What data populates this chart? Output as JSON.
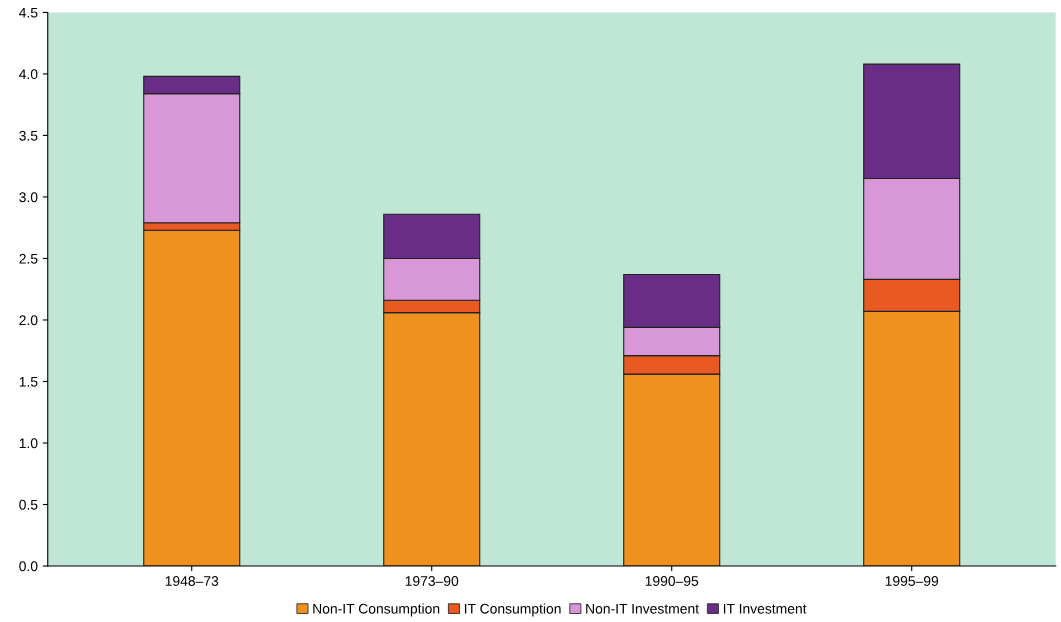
{
  "chart_data": {
    "type": "bar",
    "stacked": true,
    "categories": [
      "1948–73",
      "1973–90",
      "1990–95",
      "1995–99"
    ],
    "series": [
      {
        "name": "Non-IT Consumption",
        "color": "#f0901e",
        "values": [
          2.73,
          2.06,
          1.56,
          2.07
        ]
      },
      {
        "name": "IT Consumption",
        "color": "#e85a22",
        "values": [
          0.06,
          0.1,
          0.15,
          0.26
        ]
      },
      {
        "name": "Non-IT Investment",
        "color": "#d898d8",
        "values": [
          1.05,
          0.34,
          0.23,
          0.82
        ]
      },
      {
        "name": "IT Investment",
        "color": "#6a2d86",
        "values": [
          0.14,
          0.36,
          0.43,
          0.93
        ]
      }
    ],
    "ylim": [
      0,
      4.5
    ],
    "yticks": [
      {
        "value": 0,
        "label": "0.0"
      },
      {
        "value": 0.5,
        "label": "0.5"
      },
      {
        "value": 1,
        "label": "1.0"
      },
      {
        "value": 1.5,
        "label": "1.5"
      },
      {
        "value": 2,
        "label": "2.0"
      },
      {
        "value": 2.5,
        "label": "2.5"
      },
      {
        "value": 3,
        "label": "3.0"
      },
      {
        "value": 3.5,
        "label": "3.5"
      },
      {
        "value": 4,
        "label": "4.0"
      },
      {
        "value": 4.5,
        "label": "4.5"
      }
    ],
    "grid": false,
    "legend": "bottom"
  }
}
